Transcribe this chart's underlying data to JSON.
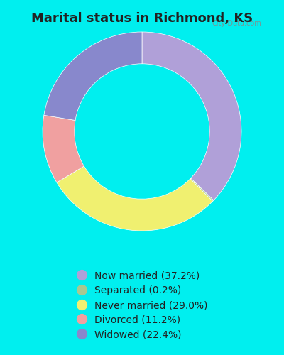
{
  "title": "Marital status in Richmond, KS",
  "title_color": "#222222",
  "title_fontsize": 13,
  "bg_outer": "#00EFEF",
  "bg_chart": "#d8f0e0",
  "slices": [
    {
      "label": "Now married (37.2%)",
      "value": 37.2,
      "color": "#b0a0d8"
    },
    {
      "label": "Separated (0.2%)",
      "value": 0.2,
      "color": "#a8c890"
    },
    {
      "label": "Never married (29.0%)",
      "value": 29.0,
      "color": "#f0f070"
    },
    {
      "label": "Divorced (11.2%)",
      "value": 11.2,
      "color": "#f0a0a0"
    },
    {
      "label": "Widowed (22.4%)",
      "value": 22.4,
      "color": "#8888cc"
    }
  ],
  "donut_width": 0.32,
  "legend_fontsize": 10,
  "watermark": "City-Data.com"
}
